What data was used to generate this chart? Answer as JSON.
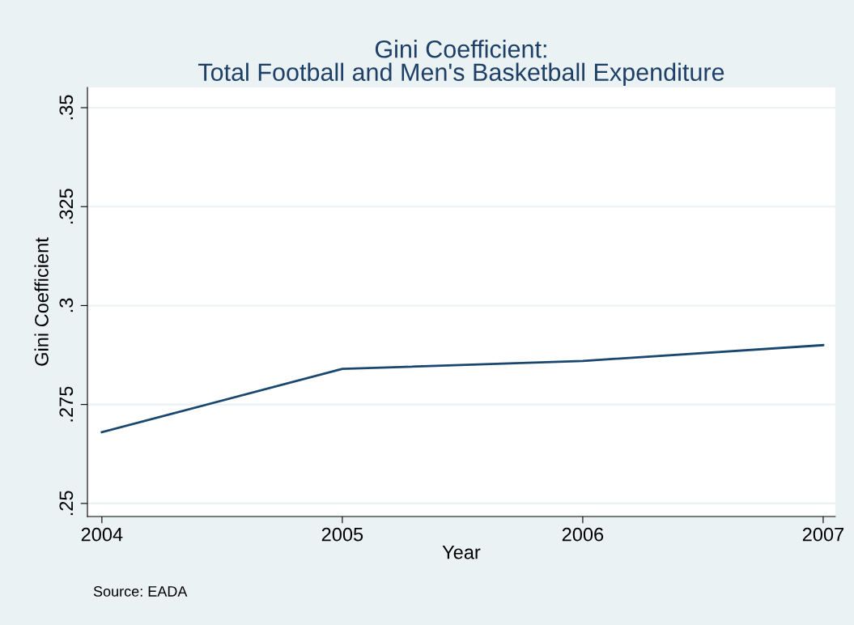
{
  "chart_data": {
    "type": "line",
    "title": "Gini Coefficient:\nTotal Football and Men's Basketball Expenditure",
    "xlabel": "Year",
    "ylabel": "Gini Coefficient",
    "x": [
      2004,
      2005,
      2006,
      2007
    ],
    "series": [
      {
        "color": "#1a476f",
        "values": [
          0.268,
          0.284,
          0.286,
          0.29
        ]
      }
    ],
    "xlim": [
      2003.94,
      2007.05
    ],
    "xticks": [
      2004,
      2005,
      2006,
      2007
    ],
    "ylim": [
      0.2467,
      0.3551
    ],
    "yticks": [
      {
        "value": 0.25,
        "label": ".25"
      },
      {
        "value": 0.275,
        "label": ".275"
      },
      {
        "value": 0.3,
        "label": ".3"
      },
      {
        "value": 0.325,
        "label": ".325"
      },
      {
        "value": 0.35,
        "label": ".35"
      }
    ],
    "grid": "y",
    "legend": false,
    "marker": "none",
    "line_style": "solid",
    "annotations": [
      "Source: EADA"
    ]
  }
}
